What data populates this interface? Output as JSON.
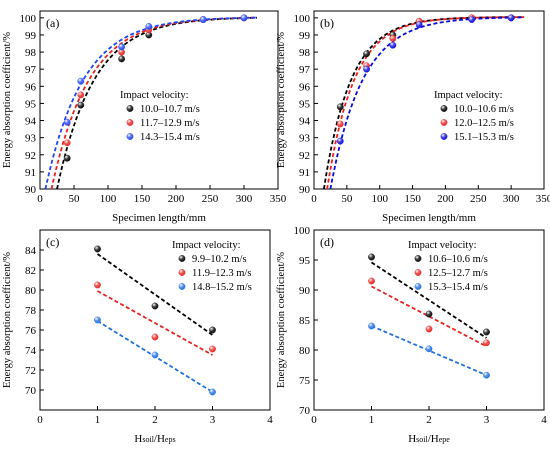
{
  "chart_data": [
    {
      "type": "scatter",
      "panel_label": "(a)",
      "xlabel": "Specimen length/mm",
      "ylabel": "Energy absorption coefficient/%",
      "xlim": [
        0,
        350
      ],
      "ylim": [
        90,
        100.4
      ],
      "xticks": [
        0,
        50,
        100,
        150,
        200,
        250,
        300,
        350
      ],
      "yticks": [
        90,
        91,
        92,
        93,
        94,
        95,
        96,
        97,
        98,
        99,
        100
      ],
      "legend_title": "Impact velocity:",
      "legend_position": "center-right",
      "grid": false,
      "fit": "exponential (dashed)",
      "series": [
        {
          "name": "10.0–10.7 m/s",
          "color": "#000000",
          "x": [
            40,
            60,
            120,
            160,
            240,
            300
          ],
          "y": [
            91.8,
            94.9,
            97.6,
            99.0,
            99.9,
            100.0
          ],
          "fit_y0": 25
        },
        {
          "name": "11.7–12.9 m/s",
          "color": "#e8231f",
          "x": [
            40,
            60,
            120,
            160,
            240,
            300
          ],
          "y": [
            92.7,
            95.5,
            98.0,
            99.3,
            99.9,
            100.0
          ],
          "fit_y0": 17
        },
        {
          "name": "14.3–15.4 m/s",
          "color": "#1f43f0",
          "x": [
            40,
            60,
            120,
            160,
            240,
            300
          ],
          "y": [
            93.9,
            96.3,
            98.3,
            99.5,
            99.9,
            100.0
          ],
          "fit_y0": 8
        }
      ]
    },
    {
      "type": "scatter",
      "panel_label": "(b)",
      "xlabel": "Specimen length/mm",
      "ylabel": "Energy absorption coefficient/%",
      "xlim": [
        0,
        350
      ],
      "ylim": [
        90,
        100.4
      ],
      "xticks": [
        0,
        50,
        100,
        150,
        200,
        250,
        300,
        350
      ],
      "yticks": [
        90,
        91,
        92,
        93,
        94,
        95,
        96,
        97,
        98,
        99,
        100
      ],
      "legend_title": "Impact velocity:",
      "legend_position": "center-right",
      "grid": false,
      "fit": "exponential (dashed)",
      "series": [
        {
          "name": "10.0–10.6 m/s",
          "color": "#000000",
          "x": [
            40,
            80,
            120,
            160,
            240,
            300
          ],
          "y": [
            94.8,
            97.9,
            99.0,
            99.8,
            100.0,
            100.0
          ],
          "fit_y0": 15
        },
        {
          "name": "12.0–12.5 m/s",
          "color": "#e8231f",
          "x": [
            40,
            80,
            120,
            160,
            240,
            300
          ],
          "y": [
            93.8,
            97.2,
            98.8,
            99.8,
            100.0,
            100.0
          ],
          "fit_y0": 20
        },
        {
          "name": "15.1–15.3 m/s",
          "color": "#0a0adc",
          "x": [
            40,
            80,
            120,
            160,
            240,
            300
          ],
          "y": [
            92.8,
            97.0,
            98.4,
            99.6,
            99.9,
            100.0
          ],
          "fit_y0": 25
        }
      ]
    },
    {
      "type": "scatter",
      "panel_label": "(c)",
      "xlabel": "H",
      "xlabel_sub1": "soil",
      "xlabel_mid": "/H",
      "xlabel_sub2": "eps",
      "ylabel": "Energy absorption coefficient/%",
      "xlim": [
        0,
        4
      ],
      "ylim": [
        68,
        86
      ],
      "xticks": [
        0,
        1,
        2,
        3,
        4
      ],
      "yticks": [
        70,
        72,
        74,
        76,
        78,
        80,
        82,
        84
      ],
      "legend_title": "Impact velocity:",
      "legend_position": "top-right",
      "grid": false,
      "fit": "linear (dashed)",
      "series": [
        {
          "name": "9.9–10.2 m/s",
          "color": "#000000",
          "x": [
            1,
            2,
            3
          ],
          "y": [
            84.1,
            78.4,
            76.0
          ],
          "fit": [
            83.6,
            75.5
          ]
        },
        {
          "name": "11.9–12.3 m/s",
          "color": "#e8231f",
          "x": [
            1,
            2,
            3
          ],
          "y": [
            80.5,
            75.3,
            74.1
          ],
          "fit": [
            79.9,
            73.5
          ]
        },
        {
          "name": "14.8–15.2 m/s",
          "color": "#1f6fe0",
          "x": [
            1,
            2,
            3
          ],
          "y": [
            77.0,
            73.5,
            69.8
          ],
          "fit": [
            76.9,
            69.8
          ]
        }
      ]
    },
    {
      "type": "scatter",
      "panel_label": "(d)",
      "xlabel": "H",
      "xlabel_sub1": "soil",
      "xlabel_mid": "/H",
      "xlabel_sub2": "epe",
      "ylabel": "Energy absorption coefficient/%",
      "xlim": [
        0,
        4
      ],
      "ylim": [
        70,
        100
      ],
      "xticks": [
        0,
        1,
        2,
        3,
        4
      ],
      "yticks": [
        70,
        75,
        80,
        85,
        90,
        95,
        100
      ],
      "legend_title": "Impact velocity:",
      "legend_position": "top-right",
      "grid": false,
      "fit": "linear (dashed)",
      "series": [
        {
          "name": "10.6–10.6 m/s",
          "color": "#000000",
          "x": [
            1,
            2,
            3
          ],
          "y": [
            95.5,
            86.0,
            83.0
          ],
          "fit": [
            94.6,
            82.0
          ]
        },
        {
          "name": "12.5–12.7 m/s",
          "color": "#e8231f",
          "x": [
            1,
            2,
            3
          ],
          "y": [
            91.5,
            83.5,
            81.2
          ],
          "fit": [
            90.6,
            80.6
          ]
        },
        {
          "name": "15.3–15.4 m/s",
          "color": "#1f6fe0",
          "x": [
            1,
            2,
            3
          ],
          "y": [
            84.0,
            80.2,
            75.8
          ],
          "fit": [
            84.0,
            75.8
          ]
        }
      ]
    }
  ]
}
